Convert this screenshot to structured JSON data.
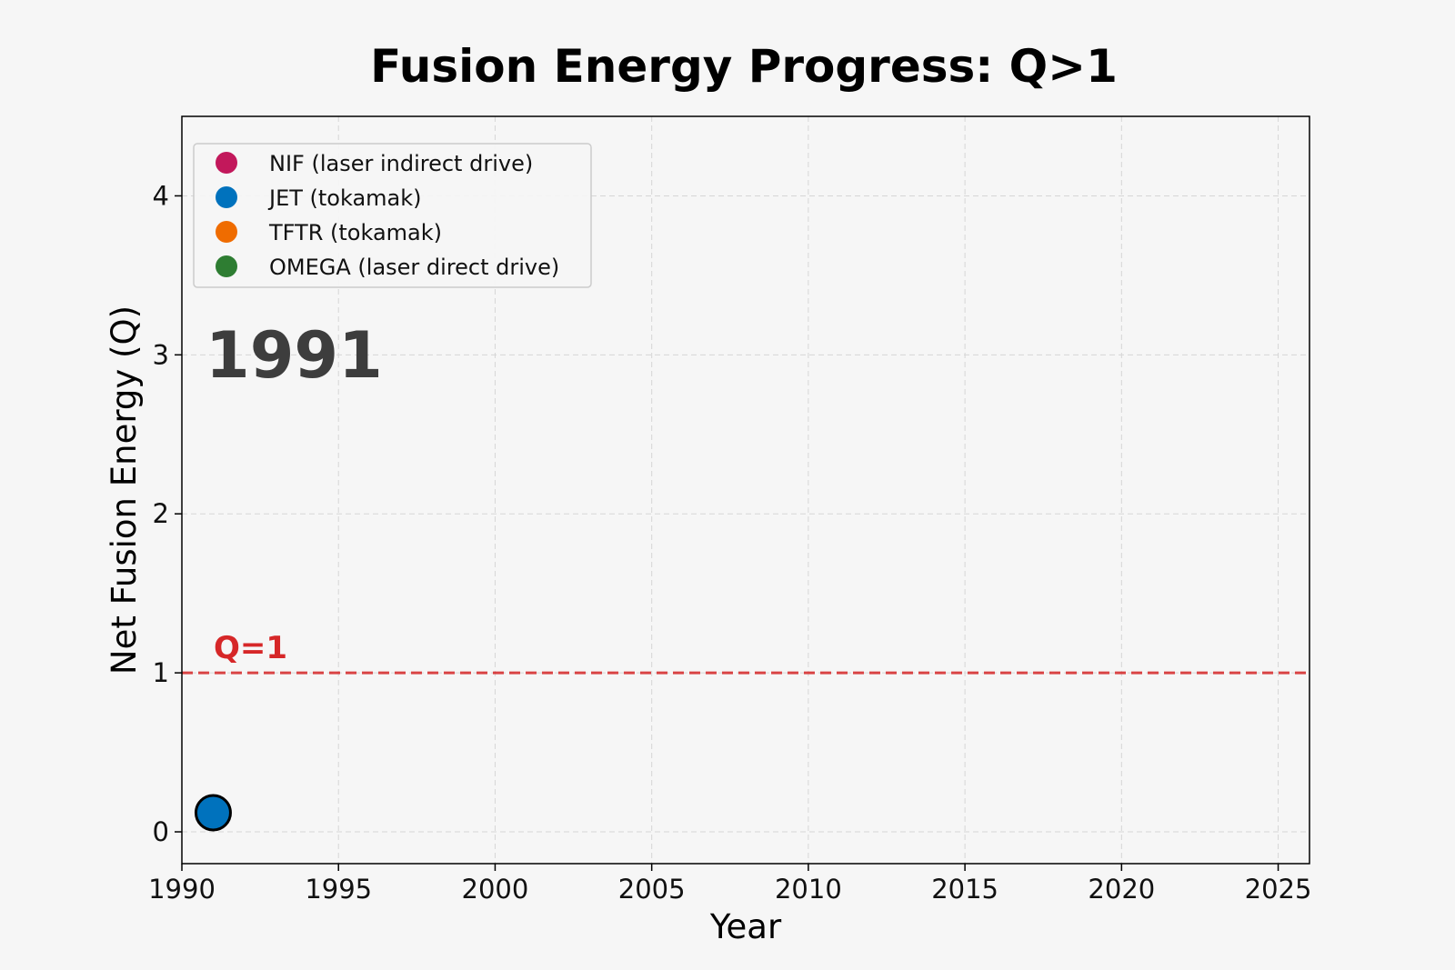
{
  "chart_data": {
    "type": "scatter",
    "title": "Fusion Energy Progress: Q>1",
    "xlabel": "Year",
    "ylabel": "Net Fusion Energy (Q)",
    "xlim": [
      1990,
      2026
    ],
    "ylim": [
      -0.2,
      4.5
    ],
    "x_ticks": [
      1990,
      1995,
      2000,
      2005,
      2010,
      2015,
      2020,
      2025
    ],
    "y_ticks": [
      0,
      1,
      2,
      3,
      4
    ],
    "grid": true,
    "legend_position": "top-left",
    "current_year_label": "1991",
    "reference_line": {
      "y": 1,
      "label": "Q=1",
      "color": "#d62728"
    },
    "series": [
      {
        "name": "NIF (laser indirect drive)",
        "color": "#c2185b",
        "points": []
      },
      {
        "name": "JET (tokamak)",
        "color": "#0072bd",
        "points": [
          {
            "x": 1991,
            "y": 0.12
          }
        ]
      },
      {
        "name": "TFTR (tokamak)",
        "color": "#ef6c00",
        "points": []
      },
      {
        "name": "OMEGA (laser direct drive)",
        "color": "#2e7d32",
        "points": []
      }
    ]
  }
}
